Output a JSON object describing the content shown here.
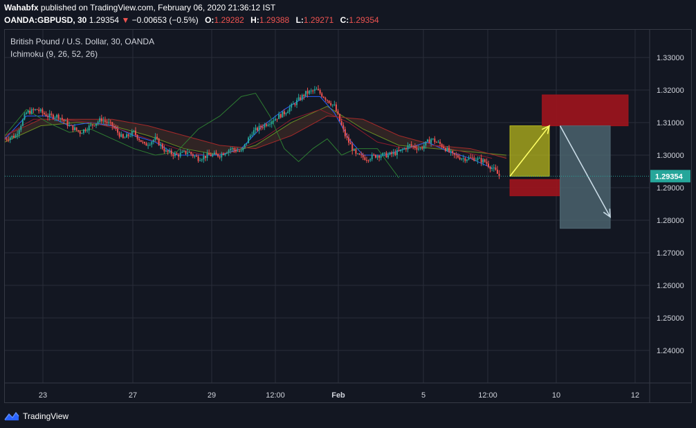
{
  "header": {
    "author": "Wahabfx",
    "publish_text": "published on TradingView.com, February 06, 2020 21:36:12 IST"
  },
  "quote": {
    "symbol": "OANDA:GBPUSD, 30",
    "last": "1.29354",
    "change": "−0.00653 (−0.5%)",
    "open_label": "O:",
    "open": "1.29282",
    "high_label": "H:",
    "high": "1.29388",
    "low_label": "L:",
    "low": "1.29271",
    "close_label": "C:",
    "close": "1.29354"
  },
  "legend": {
    "instrument": "British Pound / U.S. Dollar, 30, OANDA",
    "indicator": "Ichimoku (9, 26, 52, 26)"
  },
  "footer": {
    "brand": "TradingView"
  },
  "colors": {
    "background": "#131722",
    "grid": "#2a2e39",
    "border": "#363a45",
    "up": "#26a69a",
    "down": "#ef5350",
    "price_line": "#26a69a",
    "conversion": "#2962ff",
    "base": "#8d1c2c",
    "lagging": "#2e7d32",
    "cloud": "#3b2a26",
    "long_target": "#b5b61c",
    "stop_zone": "#a0141d",
    "short_zone": "#4f6873",
    "arrow_up": "#ffff66",
    "arrow_down": "#c9dbe6"
  },
  "chart_data": {
    "type": "candlestick",
    "ylim": [
      1.23,
      1.3385
    ],
    "y_ticks": [
      "1.33000",
      "1.32000",
      "1.31000",
      "1.30000",
      "1.29000",
      "1.28000",
      "1.27000",
      "1.26000",
      "1.25000",
      "1.24000"
    ],
    "x_ticks": [
      "23",
      "27",
      "29",
      "12:00",
      "Feb",
      "5",
      "12:00",
      "10",
      "12"
    ],
    "last_price": 1.29354,
    "last_price_label": "1.29354",
    "grid": true,
    "series": [
      {
        "name": "price_path",
        "values": [
          [
            0,
            1.305
          ],
          [
            3,
            1.306
          ],
          [
            6,
            1.313
          ],
          [
            9,
            1.314
          ],
          [
            12,
            1.312
          ],
          [
            15,
            1.312
          ],
          [
            18,
            1.309
          ],
          [
            21,
            1.307
          ],
          [
            24,
            1.309
          ],
          [
            27,
            1.311
          ],
          [
            30,
            1.309
          ],
          [
            33,
            1.305
          ],
          [
            36,
            1.307
          ],
          [
            39,
            1.303
          ],
          [
            42,
            1.305
          ],
          [
            45,
            1.301
          ],
          [
            48,
            1.3
          ],
          [
            51,
            1.301
          ],
          [
            54,
            1.299
          ],
          [
            57,
            1.3
          ],
          [
            60,
            1.3
          ],
          [
            63,
            1.302
          ],
          [
            66,
            1.301
          ],
          [
            69,
            1.307
          ],
          [
            72,
            1.309
          ],
          [
            75,
            1.311
          ],
          [
            78,
            1.313
          ],
          [
            81,
            1.316
          ],
          [
            84,
            1.319
          ],
          [
            87,
            1.32
          ],
          [
            89,
            1.318
          ],
          [
            92,
            1.315
          ],
          [
            95,
            1.306
          ],
          [
            98,
            1.3
          ],
          [
            101,
            1.299
          ],
          [
            104,
            1.3
          ],
          [
            107,
            1.3
          ],
          [
            110,
            1.301
          ],
          [
            113,
            1.303
          ],
          [
            116,
            1.302
          ],
          [
            119,
            1.305
          ],
          [
            122,
            1.303
          ],
          [
            125,
            1.3
          ],
          [
            128,
            1.299
          ],
          [
            131,
            1.299
          ],
          [
            134,
            1.298
          ],
          [
            137,
            1.295
          ],
          [
            138,
            1.2935
          ]
        ]
      },
      {
        "name": "conversion",
        "values": [
          [
            0,
            1.305
          ],
          [
            6,
            1.312
          ],
          [
            12,
            1.312
          ],
          [
            18,
            1.309
          ],
          [
            24,
            1.31
          ],
          [
            30,
            1.309
          ],
          [
            36,
            1.306
          ],
          [
            42,
            1.304
          ],
          [
            48,
            1.3
          ],
          [
            54,
            1.3
          ],
          [
            60,
            1.3
          ],
          [
            66,
            1.302
          ],
          [
            72,
            1.309
          ],
          [
            78,
            1.314
          ],
          [
            84,
            1.318
          ],
          [
            88,
            1.318
          ],
          [
            92,
            1.313
          ],
          [
            96,
            1.305
          ],
          [
            100,
            1.3
          ],
          [
            106,
            1.3
          ],
          [
            112,
            1.302
          ],
          [
            118,
            1.304
          ],
          [
            124,
            1.301
          ],
          [
            130,
            1.299
          ],
          [
            136,
            1.296
          ]
        ]
      },
      {
        "name": "base",
        "values": [
          [
            0,
            1.306
          ],
          [
            8,
            1.311
          ],
          [
            16,
            1.311
          ],
          [
            24,
            1.31
          ],
          [
            32,
            1.308
          ],
          [
            40,
            1.305
          ],
          [
            48,
            1.302
          ],
          [
            56,
            1.3
          ],
          [
            64,
            1.301
          ],
          [
            72,
            1.305
          ],
          [
            80,
            1.311
          ],
          [
            88,
            1.314
          ],
          [
            96,
            1.31
          ],
          [
            104,
            1.304
          ],
          [
            112,
            1.302
          ],
          [
            120,
            1.303
          ],
          [
            128,
            1.301
          ],
          [
            136,
            1.299
          ]
        ]
      },
      {
        "name": "lagging",
        "values": [
          [
            0,
            1.306
          ],
          [
            6,
            1.314
          ],
          [
            12,
            1.31
          ],
          [
            18,
            1.307
          ],
          [
            24,
            1.308
          ],
          [
            30,
            1.305
          ],
          [
            36,
            1.302
          ],
          [
            42,
            1.3
          ],
          [
            48,
            1.301
          ],
          [
            54,
            1.308
          ],
          [
            60,
            1.312
          ],
          [
            66,
            1.318
          ],
          [
            70,
            1.319
          ],
          [
            74,
            1.312
          ],
          [
            78,
            1.302
          ],
          [
            82,
            1.298
          ],
          [
            86,
            1.302
          ],
          [
            90,
            1.305
          ],
          [
            94,
            1.3
          ],
          [
            98,
            1.302
          ],
          [
            104,
            1.302
          ],
          [
            110,
            1.293
          ]
        ]
      }
    ],
    "cloud": {
      "span_a": [
        [
          0,
          1.304
        ],
        [
          10,
          1.309
        ],
        [
          20,
          1.31
        ],
        [
          30,
          1.309
        ],
        [
          40,
          1.306
        ],
        [
          50,
          1.302
        ],
        [
          60,
          1.3
        ],
        [
          70,
          1.303
        ],
        [
          80,
          1.31
        ],
        [
          90,
          1.315
        ],
        [
          100,
          1.308
        ],
        [
          110,
          1.303
        ],
        [
          120,
          1.302
        ],
        [
          130,
          1.301
        ],
        [
          140,
          1.3
        ]
      ],
      "span_b": [
        [
          0,
          1.306
        ],
        [
          10,
          1.311
        ],
        [
          20,
          1.311
        ],
        [
          30,
          1.311
        ],
        [
          40,
          1.309
        ],
        [
          50,
          1.306
        ],
        [
          60,
          1.303
        ],
        [
          70,
          1.302
        ],
        [
          80,
          1.306
        ],
        [
          90,
          1.312
        ],
        [
          100,
          1.311
        ],
        [
          110,
          1.306
        ],
        [
          120,
          1.303
        ],
        [
          130,
          1.302
        ],
        [
          140,
          1.299
        ]
      ]
    },
    "annotations": [
      {
        "name": "long-target-box",
        "x1": 141,
        "x2": 152,
        "y1": 1.2935,
        "y2": 1.309
      },
      {
        "name": "long-stop-box",
        "x1": 141,
        "x2": 155,
        "y1": 1.2875,
        "y2": 1.2925
      },
      {
        "name": "short-stop-box",
        "x1": 150,
        "x2": 174,
        "y1": 1.309,
        "y2": 1.3185
      },
      {
        "name": "short-target-box",
        "x1": 155,
        "x2": 169,
        "y1": 1.2775,
        "y2": 1.309
      }
    ],
    "arrows": [
      {
        "name": "long-arrow",
        "from": [
          141,
          1.2935
        ],
        "to": [
          152,
          1.309
        ]
      },
      {
        "name": "short-arrow",
        "from": [
          155,
          1.309
        ],
        "to": [
          169,
          1.281
        ]
      }
    ],
    "x_range": [
      0,
      180
    ]
  }
}
